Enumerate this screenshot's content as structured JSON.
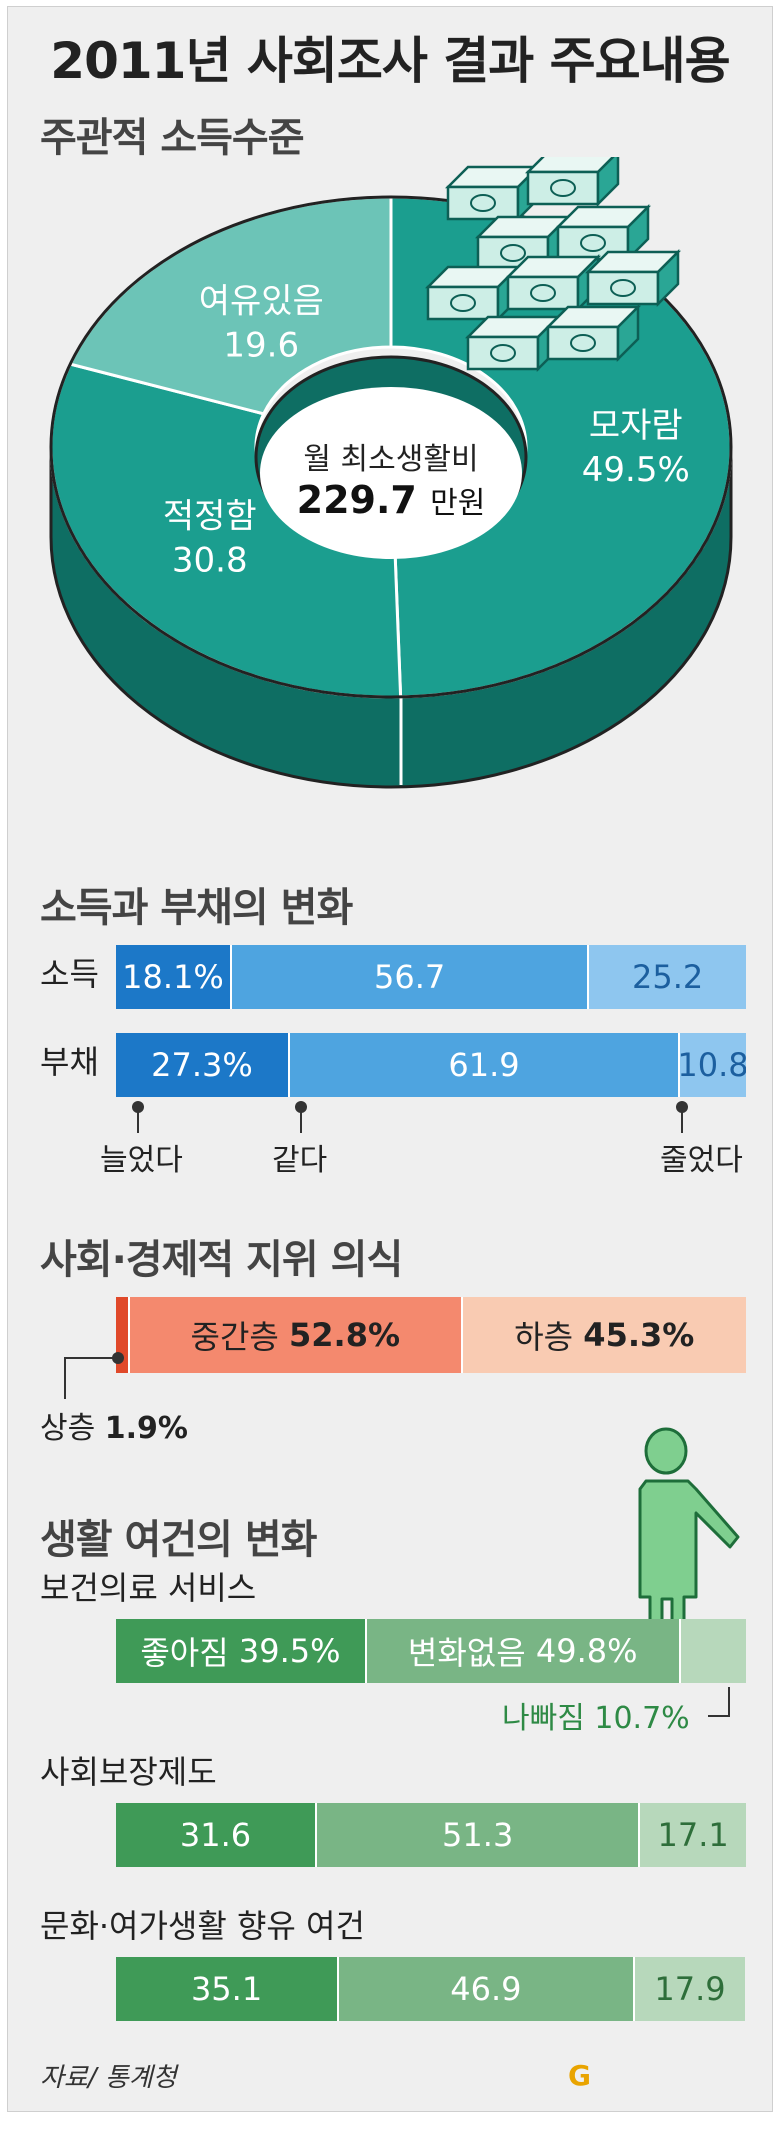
{
  "title": "2011년 사회조사 결과 주요내용",
  "source": "자료/ 통계청",
  "colors": {
    "pie_main": "#1b9e8f",
    "pie_light": "#6cc4b7",
    "pie_dark": "#0e6e63",
    "blue_dark": "#1c78c8",
    "blue_mid": "#4ea4e0",
    "blue_light": "#8ec6ef",
    "coral": "#f4896e",
    "peach": "#f9cbb2",
    "red_line": "#e0492a",
    "green_dark": "#3f9a57",
    "green_mid": "#79b585",
    "green_light": "#b7d8bb",
    "green_text": "#2e8a45"
  },
  "icons": {
    "money": "money-stack-icon",
    "person": "person-icon"
  },
  "chart_data": [
    {
      "type": "pie",
      "title": "주관적 소득수준",
      "center_label": "월 최소생활비",
      "center_value": "229.7",
      "center_unit": "만원",
      "slices": [
        {
          "label": "모자람",
          "value": 49.5,
          "display": "49.5%"
        },
        {
          "label": "적정함",
          "value": 30.8,
          "display": "30.8"
        },
        {
          "label": "여유있음",
          "value": 19.6,
          "display": "19.6"
        }
      ]
    },
    {
      "type": "bar",
      "title": "소득과 부채의 변화",
      "categories": [
        "늘었다",
        "같다",
        "줄었다"
      ],
      "series": [
        {
          "name": "소득",
          "values": [
            18.1,
            56.7,
            25.2
          ],
          "labels": [
            "18.1%",
            "56.7",
            "25.2"
          ]
        },
        {
          "name": "부채",
          "values": [
            27.3,
            61.9,
            10.8
          ],
          "labels": [
            "27.3%",
            "61.9",
            "10.8"
          ]
        }
      ]
    },
    {
      "type": "bar",
      "title": "사회·경제적 지위 의식",
      "categories": [
        "상층",
        "중간층",
        "하층"
      ],
      "values": [
        1.9,
        52.8,
        45.3
      ],
      "labels": [
        "1.9%",
        "52.8%",
        "45.3%"
      ]
    },
    {
      "type": "bar",
      "title": "생활 여건의 변화",
      "categories": [
        "좋아짐",
        "변화없음",
        "나빠짐"
      ],
      "series": [
        {
          "name": "보건의료 서비스",
          "values": [
            39.5,
            49.8,
            10.7
          ],
          "labels": [
            "39.5%",
            "49.8%",
            "10.7%"
          ]
        },
        {
          "name": "사회보장제도",
          "values": [
            31.6,
            51.3,
            17.1
          ],
          "labels": [
            "31.6",
            "51.3",
            "17.1"
          ]
        },
        {
          "name": "문화·여가생활 향유 여건",
          "values": [
            35.1,
            46.9,
            17.9
          ],
          "labels": [
            "35.1",
            "46.9",
            "17.9"
          ]
        }
      ]
    }
  ]
}
